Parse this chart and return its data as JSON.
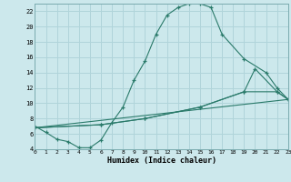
{
  "xlabel": "Humidex (Indice chaleur)",
  "bg_color": "#cce8ec",
  "line_color": "#2a7a6a",
  "grid_color": "#b0d4da",
  "xlim": [
    0,
    23
  ],
  "ylim": [
    4,
    23
  ],
  "xticks": [
    0,
    1,
    2,
    3,
    4,
    5,
    6,
    7,
    8,
    9,
    10,
    11,
    12,
    13,
    14,
    15,
    16,
    17,
    18,
    19,
    20,
    21,
    22,
    23
  ],
  "yticks": [
    4,
    6,
    8,
    10,
    12,
    14,
    16,
    18,
    20,
    22
  ],
  "curve1_x": [
    0,
    1,
    2,
    3,
    4,
    5,
    6,
    7,
    8,
    9,
    10,
    11,
    12,
    13,
    14,
    15,
    16,
    17,
    19,
    21,
    22,
    23
  ],
  "curve1_y": [
    7,
    6.2,
    5.3,
    5.0,
    4.2,
    4.2,
    5.2,
    7.5,
    9.5,
    13.0,
    15.5,
    19.0,
    21.5,
    22.5,
    23.0,
    23.0,
    22.5,
    19.0,
    15.8,
    14.0,
    12.0,
    10.5
  ],
  "curve2_x": [
    0,
    23
  ],
  "curve2_y": [
    6.8,
    10.5
  ],
  "curve3_x": [
    0,
    6,
    10,
    15,
    19,
    22,
    23
  ],
  "curve3_y": [
    6.8,
    7.2,
    8.0,
    9.5,
    11.5,
    11.5,
    10.5
  ],
  "curve4_x": [
    0,
    6,
    10,
    15,
    19,
    20,
    22,
    23
  ],
  "curve4_y": [
    6.8,
    7.2,
    8.0,
    9.5,
    11.5,
    14.5,
    11.5,
    10.5
  ]
}
